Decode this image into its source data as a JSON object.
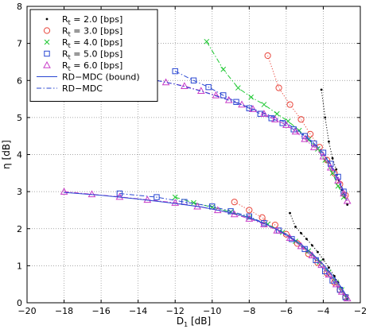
{
  "chart_data": {
    "type": "line",
    "title": "",
    "xlabel": "D",
    "xlabel_sub": "1",
    "xlabel_unit": " [dB]",
    "ylabel": "η [dB]",
    "xlim": [
      -20,
      -2
    ],
    "ylim": [
      0,
      8
    ],
    "xticks": [
      -20,
      -18,
      -16,
      -14,
      -12,
      -10,
      -8,
      -6,
      -4,
      -2
    ],
    "yticks": [
      0,
      1,
      2,
      3,
      4,
      5,
      6,
      7,
      8
    ],
    "grid": true,
    "legend_position": "top-left",
    "series": [
      {
        "name": "R",
        "name_sub": "t",
        "name_rest": " = 2.0 [bps]",
        "color": "#000000",
        "marker": "dot",
        "line": "dotted",
        "branches": [
          {
            "x": [
              -4.1,
              -3.9,
              -3.7,
              -3.5,
              -3.3,
              -3.15,
              -3.0,
              -2.85,
              -2.7
            ],
            "y": [
              5.75,
              5.0,
              4.35,
              3.9,
              3.6,
              3.3,
              3.05,
              2.85,
              2.65
            ]
          },
          {
            "x": [
              -5.8,
              -5.5,
              -5.2,
              -4.9,
              -4.6,
              -4.3,
              -4.0,
              -3.7,
              -3.4,
              -3.2,
              -3.0,
              -2.85,
              -2.7
            ],
            "y": [
              2.42,
              2.05,
              1.88,
              1.72,
              1.55,
              1.37,
              1.17,
              0.95,
              0.72,
              0.55,
              0.38,
              0.22,
              0.1
            ]
          }
        ]
      },
      {
        "name": "R",
        "name_sub": "t",
        "name_rest": " = 3.0 [bps]",
        "color": "#e8463c",
        "marker": "circle",
        "line": "dotted",
        "branches": [
          {
            "x": [
              -7.0,
              -6.4,
              -5.8,
              -5.2,
              -4.7,
              -4.2,
              -3.8,
              -3.4,
              -3.1,
              -2.8
            ],
            "y": [
              6.67,
              5.8,
              5.35,
              4.95,
              4.55,
              4.2,
              3.85,
              3.5,
              3.2,
              2.9
            ]
          },
          {
            "x": [
              -8.8,
              -8.0,
              -7.3,
              -6.6,
              -6.0,
              -5.4,
              -4.8,
              -4.3,
              -3.8,
              -3.4,
              -3.1,
              -2.8
            ],
            "y": [
              2.72,
              2.5,
              2.3,
              2.1,
              1.85,
              1.6,
              1.32,
              1.08,
              0.8,
              0.55,
              0.35,
              0.15
            ]
          }
        ]
      },
      {
        "name": "R",
        "name_sub": "t",
        "name_rest": " = 4.0 [bps]",
        "color": "#1ec832",
        "marker": "x",
        "line": "dashdot",
        "branches": [
          {
            "x": [
              -10.3,
              -9.4,
              -8.6,
              -7.9,
              -7.2,
              -6.5,
              -5.9,
              -5.3,
              -4.8,
              -4.3,
              -3.9,
              -3.5,
              -3.2,
              -2.9
            ],
            "y": [
              7.05,
              6.3,
              5.8,
              5.55,
              5.35,
              5.1,
              4.9,
              4.65,
              4.4,
              4.15,
              3.85,
              3.5,
              3.15,
              2.85
            ]
          },
          {
            "x": [
              -12.0,
              -11.0,
              -10.0,
              -9.0,
              -8.0,
              -7.0,
              -6.2,
              -5.5,
              -4.8,
              -4.2,
              -3.7,
              -3.3,
              -3.0,
              -2.75
            ],
            "y": [
              2.85,
              2.7,
              2.58,
              2.45,
              2.3,
              2.12,
              1.9,
              1.66,
              1.4,
              1.1,
              0.82,
              0.55,
              0.35,
              0.15
            ]
          }
        ]
      },
      {
        "name": "R",
        "name_sub": "t",
        "name_rest": " = 5.0 [bps]",
        "color": "#2846d2",
        "marker": "square",
        "line": "dashdot",
        "branches": [
          {
            "x": [
              -12.0,
              -11.0,
              -10.2,
              -9.4,
              -8.7,
              -8.0,
              -7.4,
              -6.8,
              -6.2,
              -5.6,
              -5.0,
              -4.5,
              -4.0,
              -3.6,
              -3.2,
              -2.9
            ],
            "y": [
              6.25,
              6.0,
              5.82,
              5.6,
              5.42,
              5.25,
              5.1,
              4.98,
              4.85,
              4.68,
              4.5,
              4.3,
              4.05,
              3.75,
              3.4,
              3.0
            ]
          },
          {
            "x": [
              -15.0,
              -13.0,
              -11.5,
              -10.0,
              -9.0,
              -8.0,
              -7.2,
              -6.4,
              -5.7,
              -5.0,
              -4.4,
              -3.9,
              -3.5,
              -3.1,
              -2.8
            ],
            "y": [
              2.95,
              2.85,
              2.72,
              2.6,
              2.47,
              2.33,
              2.15,
              1.95,
              1.72,
              1.45,
              1.15,
              0.85,
              0.6,
              0.35,
              0.15
            ]
          }
        ]
      },
      {
        "name": "R",
        "name_sub": "t",
        "name_rest": " = 6.0 [bps]",
        "color": "#c83cc8",
        "marker": "triangle",
        "line": "dashdot",
        "branches": [
          {
            "x": [
              -13.5,
              -12.5,
              -11.5,
              -10.6,
              -9.8,
              -9.1,
              -8.4,
              -7.8,
              -7.2,
              -6.6,
              -6.0,
              -5.5,
              -5.0,
              -4.5,
              -4.0,
              -3.6,
              -3.2,
              -2.9,
              -2.7
            ],
            "y": [
              6.05,
              5.95,
              5.85,
              5.72,
              5.6,
              5.47,
              5.35,
              5.23,
              5.1,
              4.95,
              4.8,
              4.62,
              4.42,
              4.2,
              3.95,
              3.65,
              3.3,
              2.95,
              2.75
            ]
          },
          {
            "x": [
              -18.0,
              -16.5,
              -15.0,
              -13.5,
              -12.0,
              -10.8,
              -9.7,
              -8.8,
              -8.0,
              -7.2,
              -6.5,
              -5.8,
              -5.2,
              -4.6,
              -4.1,
              -3.7,
              -3.3,
              -3.0,
              -2.7
            ],
            "y": [
              3.0,
              2.93,
              2.86,
              2.78,
              2.7,
              2.6,
              2.5,
              2.39,
              2.27,
              2.12,
              1.95,
              1.75,
              1.53,
              1.28,
              1.02,
              0.76,
              0.5,
              0.3,
              0.12
            ]
          }
        ]
      },
      {
        "name": "RD−MDC (bound)",
        "color": "#2846d2",
        "marker": "none",
        "line": "solid",
        "branches": [
          {
            "x": [
              -18.0,
              -16.0,
              -14.0,
              -12.0,
              -10.5,
              -9.0,
              -8.0,
              -7.0,
              -6.0,
              -5.2,
              -4.5,
              -3.9,
              -3.4,
              -3.0,
              -2.7
            ],
            "y": [
              2.98,
              2.9,
              2.8,
              2.68,
              2.58,
              2.43,
              2.3,
              2.1,
              1.85,
              1.58,
              1.28,
              0.98,
              0.68,
              0.4,
              0.15
            ]
          }
        ]
      },
      {
        "name": "RD−MDC",
        "color": "#2846d2",
        "marker": "none",
        "line": "dashdot",
        "branches": [
          {
            "x": [
              -13.5,
              -12.0,
              -10.5,
              -9.0,
              -8.0,
              -7.0,
              -6.2,
              -5.5,
              -4.8,
              -4.2,
              -3.7,
              -3.3,
              -3.0,
              -2.7
            ],
            "y": [
              6.05,
              5.9,
              5.7,
              5.45,
              5.27,
              5.08,
              4.9,
              4.7,
              4.45,
              4.15,
              3.8,
              3.45,
              3.1,
              2.75
            ]
          }
        ]
      }
    ]
  }
}
